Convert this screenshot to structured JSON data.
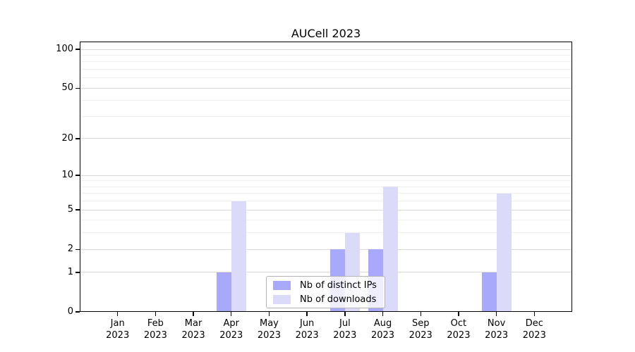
{
  "title": "AUCell 2023",
  "chart_data": {
    "type": "bar",
    "title": "AUCell 2023",
    "year_label": "2023",
    "categories": [
      "Jan",
      "Feb",
      "Mar",
      "Apr",
      "May",
      "Jun",
      "Jul",
      "Aug",
      "Sep",
      "Oct",
      "Nov",
      "Dec"
    ],
    "series": [
      {
        "name": "Nb of distinct IPs",
        "color": "#a9a9fb",
        "values": [
          0,
          0,
          0,
          1,
          0,
          0,
          2,
          2,
          0,
          0,
          1,
          0
        ]
      },
      {
        "name": "Nb of downloads",
        "color": "#dbdbf9",
        "values": [
          0,
          0,
          0,
          6,
          0,
          0,
          3,
          8,
          0,
          0,
          7,
          0
        ]
      }
    ],
    "xlabel": "",
    "ylabel": "",
    "scale": "log1p",
    "ylim": [
      0,
      100
    ],
    "y_ticks": [
      0,
      1,
      2,
      5,
      10,
      20,
      50,
      100
    ],
    "y_minor_gridlines": [
      3,
      4,
      6,
      7,
      8,
      9,
      30,
      40,
      60,
      70,
      80,
      90
    ],
    "grid": "on",
    "legend_position": "lower center"
  },
  "colors": {
    "grid_major": "#d9d9d9",
    "grid_minor": "#f0f0f0",
    "axis": "#000000",
    "background": "#ffffff"
  }
}
